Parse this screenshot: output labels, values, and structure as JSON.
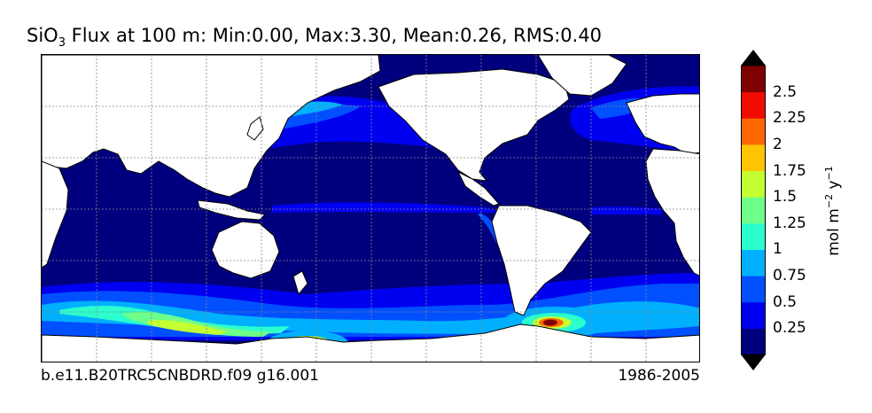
{
  "title": {
    "var": "SiO",
    "sub": "3",
    "rest": " Flux at 100 m: Min:0.00, Max:3.30, Mean:0.26, RMS:0.40"
  },
  "footer": {
    "case": "b.e11.B20TRC5CNBDRD.f09 g16.001",
    "years": "1986-2005"
  },
  "colorbar": {
    "units": {
      "base": "mol m",
      "exp1": "−2",
      "mid": " y",
      "exp2": "−1"
    },
    "ticks": [
      "0.25",
      "0.5",
      "0.75",
      "1",
      "1.25",
      "1.5",
      "1.75",
      "2",
      "2.25",
      "2.5"
    ],
    "levels": [
      0.25,
      0.5,
      0.75,
      1,
      1.25,
      1.5,
      1.75,
      2,
      2.25,
      2.5
    ],
    "colors": [
      "#00007f",
      "#0000f0",
      "#0050ff",
      "#00b0ff",
      "#2affcd",
      "#6dff8a",
      "#c3ff33",
      "#ffc400",
      "#ff6800",
      "#f00c00",
      "#7f0000"
    ]
  },
  "colors": {
    "land": "#ffffff",
    "ocean_base": "#00007f",
    "grid": "#888888"
  }
}
